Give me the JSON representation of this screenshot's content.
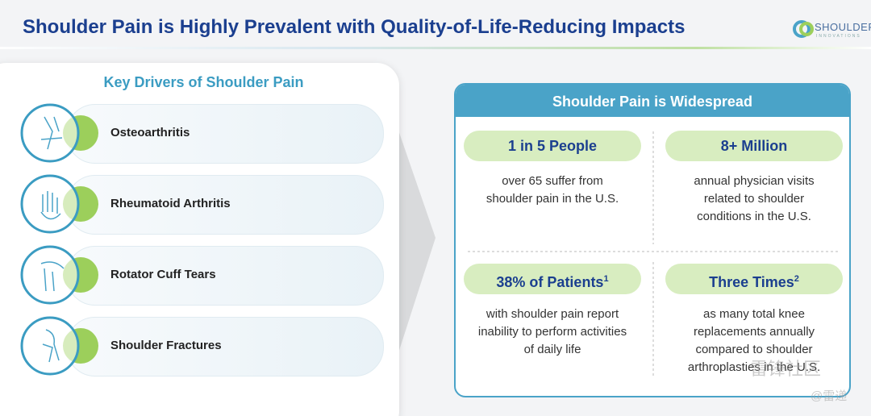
{
  "header": {
    "title": "Shoulder Pain is Highly Prevalent with Quality-of-Life-Reducing Impacts",
    "logo": {
      "name": "SHOULDER",
      "tagline": "INNOVATIONS"
    }
  },
  "drivers": {
    "title": "Key Drivers of Shoulder Pain",
    "items": [
      "Osteoarthritis",
      "Rheumatoid Arthritis",
      "Rotator Cuff Tears",
      "Shoulder Fractures"
    ]
  },
  "stats": {
    "title": "Shoulder Pain is Widespread",
    "items": [
      {
        "headline": "1 in 5 People",
        "lines": [
          "over 65 suffer from",
          "shoulder pain in the U.S."
        ]
      },
      {
        "headline": "8+ Million",
        "lines": [
          "annual physician visits",
          "related to shoulder",
          "conditions in the U.S."
        ]
      },
      {
        "headline": "38% of Patients",
        "footnote": "1",
        "lines": [
          "with shoulder pain report",
          "inability to perform activities",
          "of daily life"
        ]
      },
      {
        "headline": "Three Times",
        "footnote": "2",
        "lines": [
          "as many total knee",
          "replacements annually",
          "compared to shoulder",
          "arthroplasties in the U.S."
        ]
      }
    ]
  },
  "watermark": [
    "雷锋社区",
    "@雷递"
  ]
}
